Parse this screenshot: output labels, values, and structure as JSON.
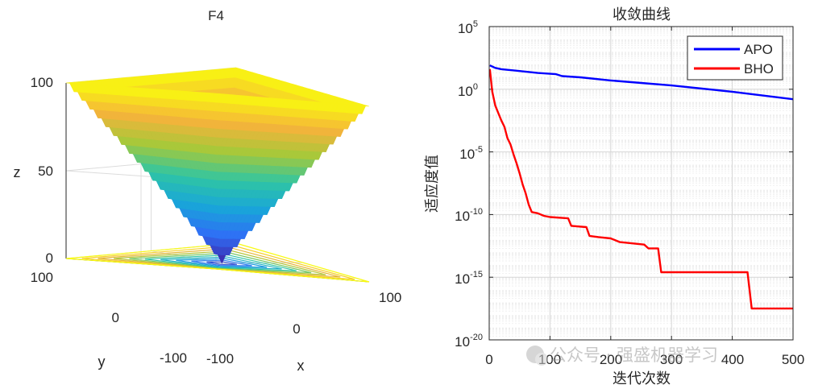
{
  "chart_data": [
    {
      "type": "surface3d",
      "title": "F4",
      "xlabel": "x",
      "ylabel": "y",
      "zlabel": "z",
      "xlim": [
        -100,
        100
      ],
      "ylim": [
        -100,
        100
      ],
      "zlim": [
        0,
        100
      ],
      "x_ticks": [
        "-100",
        "0",
        "100"
      ],
      "y_ticks": [
        "-100",
        "0",
        "100"
      ],
      "z_ticks": [
        "0",
        "50",
        "100"
      ],
      "function": "z = max(|x|, |y|)",
      "contour_levels": [
        10,
        20,
        30,
        40,
        50,
        60,
        70,
        80,
        90,
        100
      ],
      "colormap": [
        "#3e26a8",
        "#2f6ff5",
        "#19a6d9",
        "#2fc5a4",
        "#a5c93a",
        "#f5b33b",
        "#f9fb0e"
      ],
      "grid": true
    },
    {
      "type": "line",
      "title": "收敛曲线",
      "xlabel": "迭代次数",
      "ylabel": "适应度值",
      "xlim": [
        0,
        500
      ],
      "ylim_exponent": [
        -20,
        5
      ],
      "yscale": "log",
      "x_ticks": [
        "0",
        "100",
        "200",
        "300",
        "400",
        "500"
      ],
      "y_ticks": [
        {
          "base": "10",
          "exp": "5"
        },
        {
          "base": "10",
          "exp": "0"
        },
        {
          "base": "10",
          "exp": "-5"
        },
        {
          "base": "10",
          "exp": "-10"
        },
        {
          "base": "10",
          "exp": "-15"
        },
        {
          "base": "10",
          "exp": "-20"
        }
      ],
      "legend_position": "top-right",
      "grid": true,
      "series": [
        {
          "name": "APO",
          "color": "#0000ff",
          "x": [
            1,
            10,
            20,
            50,
            80,
            110,
            120,
            150,
            200,
            250,
            300,
            350,
            400,
            450,
            500
          ],
          "log10_y": [
            1.9,
            1.7,
            1.6,
            1.45,
            1.3,
            1.2,
            1.05,
            0.95,
            0.7,
            0.5,
            0.3,
            0.05,
            -0.2,
            -0.5,
            -0.8
          ]
        },
        {
          "name": "BHO",
          "color": "#ff0000",
          "x": [
            1,
            5,
            10,
            15,
            20,
            25,
            30,
            35,
            40,
            45,
            50,
            55,
            60,
            65,
            70,
            80,
            90,
            100,
            130,
            135,
            160,
            165,
            180,
            200,
            215,
            255,
            262,
            278,
            283,
            425,
            432,
            500
          ],
          "log10_y": [
            1.6,
            -0.2,
            -1.3,
            -1.9,
            -2.5,
            -3.0,
            -3.9,
            -4.4,
            -5.2,
            -5.9,
            -6.7,
            -7.6,
            -8.3,
            -9.2,
            -9.8,
            -9.9,
            -10.1,
            -10.2,
            -10.3,
            -10.9,
            -11.0,
            -11.7,
            -11.8,
            -11.9,
            -12.2,
            -12.4,
            -12.7,
            -12.7,
            -14.6,
            -14.6,
            -17.5,
            -17.5
          ]
        }
      ]
    }
  ],
  "watermark": "公众号 · 强盛机器学习"
}
